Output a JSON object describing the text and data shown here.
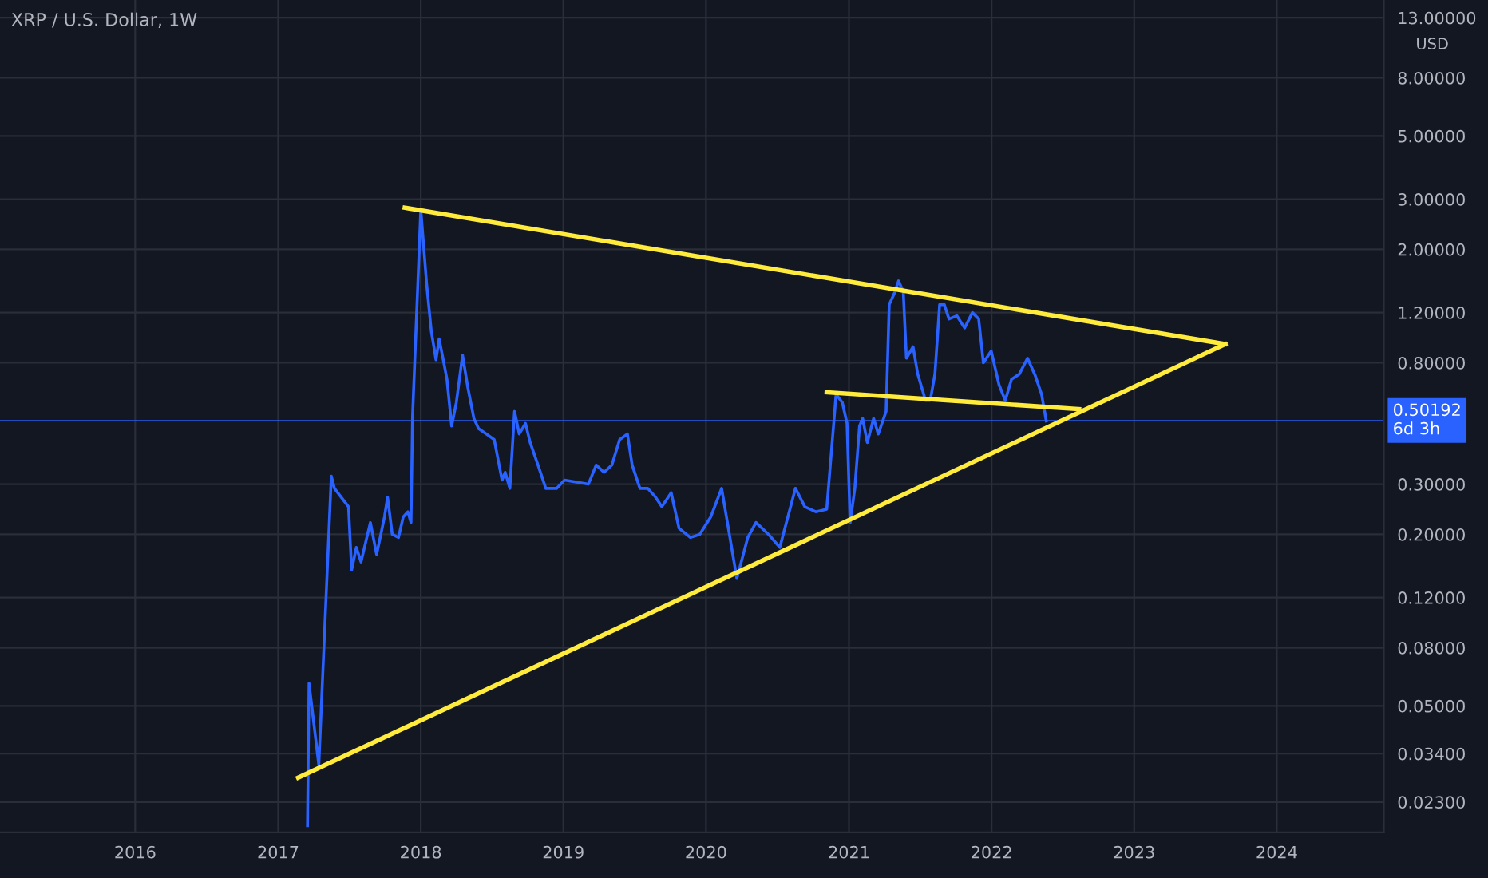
{
  "chart_data": {
    "type": "line",
    "title": "XRP / U.S. Dollar, 1W",
    "ylabel": "USD",
    "log": true,
    "grid": true,
    "legend": false,
    "marker": "none",
    "line_style": "solid",
    "xlim": [
      "2015-01-20",
      "2024-10-01"
    ],
    "xticks": [
      "2016",
      "2017",
      "2018",
      "2019",
      "2020",
      "2021",
      "2022",
      "2023",
      "2024"
    ],
    "ylim": [
      0.018,
      15
    ],
    "yticks": [
      {
        "value": 0.023,
        "label": "0.02300"
      },
      {
        "value": 0.034,
        "label": "0.03400"
      },
      {
        "value": 0.05,
        "label": "0.05000"
      },
      {
        "value": 0.08,
        "label": "0.08000"
      },
      {
        "value": 0.12,
        "label": "0.12000"
      },
      {
        "value": 0.2,
        "label": "0.20000"
      },
      {
        "value": 0.3,
        "label": "0.30000"
      },
      {
        "value": 0.8,
        "label": "0.80000"
      },
      {
        "value": 1.2,
        "label": "1.20000"
      },
      {
        "value": 2,
        "label": "2.00000"
      },
      {
        "value": 3,
        "label": "3.00000"
      },
      {
        "value": 5,
        "label": "5.00000"
      },
      {
        "value": 8,
        "label": "8.00000"
      },
      {
        "value": 13,
        "label": "13.00000"
      }
    ],
    "ref_lines": [
      {
        "axis": "y",
        "value": 0.50192,
        "label": "0.50192\n6d 3h",
        "color": "#2962ff",
        "line_style": "solid"
      }
    ],
    "series": [
      {
        "color": "#2962ff",
        "x": [
          "2017-03-17",
          "2017-03-21",
          "2017-04-15",
          "2017-05-17",
          "2017-05-25",
          "2017-06-30",
          "2017-07-08",
          "2017-07-20",
          "2017-08-01",
          "2017-08-25",
          "2017-09-10",
          "2017-09-30",
          "2017-10-08",
          "2017-10-20",
          "2017-11-05",
          "2017-11-17",
          "2017-11-29",
          "2017-12-07",
          "2017-12-11",
          "2018-01-01",
          "2018-01-16",
          "2018-01-28",
          "2018-02-09",
          "2018-02-17",
          "2018-03-01",
          "2018-03-09",
          "2018-03-21",
          "2018-04-02",
          "2018-04-18",
          "2018-05-01",
          "2018-05-17",
          "2018-05-29",
          "2018-06-18",
          "2018-07-08",
          "2018-07-28",
          "2018-08-05",
          "2018-08-17",
          "2018-08-29",
          "2018-09-10",
          "2018-09-26",
          "2018-10-08",
          "2018-10-28",
          "2018-11-17",
          "2018-12-15",
          "2019-01-04",
          "2019-03-06",
          "2019-03-26",
          "2019-04-15",
          "2019-05-05",
          "2019-05-25",
          "2019-06-14",
          "2019-06-26",
          "2019-07-16",
          "2019-08-05",
          "2019-08-25",
          "2019-09-10",
          "2019-10-04",
          "2019-10-24",
          "2019-11-22",
          "2019-12-16",
          "2020-01-13",
          "2020-02-10",
          "2020-03-20",
          "2020-04-17",
          "2020-05-08",
          "2020-06-09",
          "2020-07-08",
          "2020-08-17",
          "2020-09-10",
          "2020-10-08",
          "2020-11-05",
          "2020-11-29",
          "2020-12-15",
          "2020-12-27",
          "2021-01-04",
          "2021-01-16",
          "2021-01-28",
          "2021-02-05",
          "2021-02-17",
          "2021-03-05",
          "2021-03-17",
          "2021-04-06",
          "2021-04-14",
          "2021-04-26",
          "2021-05-08",
          "2021-05-20",
          "2021-05-28",
          "2021-06-14",
          "2021-06-26",
          "2021-07-16",
          "2021-07-28",
          "2021-08-09",
          "2021-08-21",
          "2021-09-02",
          "2021-09-14",
          "2021-10-04",
          "2021-10-24",
          "2021-11-13",
          "2021-11-29",
          "2021-12-11",
          "2021-12-31",
          "2022-01-20",
          "2022-02-05",
          "2022-02-21",
          "2022-03-13",
          "2022-04-03",
          "2022-04-23",
          "2022-05-09",
          "2022-05-21"
        ],
        "values": [
          0.019,
          0.06,
          0.031,
          0.32,
          0.29,
          0.25,
          0.15,
          0.18,
          0.16,
          0.22,
          0.17,
          0.23,
          0.27,
          0.2,
          0.195,
          0.23,
          0.24,
          0.22,
          0.52,
          2.76,
          1.51,
          1.03,
          0.82,
          0.97,
          0.8,
          0.7,
          0.48,
          0.58,
          0.85,
          0.66,
          0.51,
          0.47,
          0.45,
          0.43,
          0.31,
          0.33,
          0.29,
          0.54,
          0.45,
          0.49,
          0.42,
          0.35,
          0.29,
          0.29,
          0.31,
          0.3,
          0.35,
          0.33,
          0.35,
          0.43,
          0.45,
          0.35,
          0.29,
          0.29,
          0.27,
          0.25,
          0.28,
          0.21,
          0.195,
          0.2,
          0.23,
          0.29,
          0.14,
          0.195,
          0.22,
          0.2,
          0.18,
          0.29,
          0.25,
          0.24,
          0.245,
          0.62,
          0.58,
          0.49,
          0.22,
          0.29,
          0.48,
          0.51,
          0.42,
          0.51,
          0.45,
          0.54,
          1.28,
          1.39,
          1.55,
          1.42,
          0.83,
          0.91,
          0.73,
          0.59,
          0.59,
          0.73,
          1.28,
          1.28,
          1.14,
          1.17,
          1.06,
          1.2,
          1.14,
          0.8,
          0.88,
          0.67,
          0.59,
          0.7,
          0.73,
          0.83,
          0.72,
          0.62,
          0.5
        ]
      },
      {
        "color": "#ffeb3b",
        "x": [
          "2017-11-21",
          "2023-08-22"
        ],
        "values": [
          2.8,
          0.93
        ]
      },
      {
        "color": "#ffeb3b",
        "x": [
          "2017-02-21",
          "2023-08-22"
        ],
        "values": [
          0.028,
          0.93
        ]
      },
      {
        "color": "#ffeb3b",
        "x": [
          "2020-11-05",
          "2022-08-13"
        ],
        "values": [
          0.63,
          0.55
        ]
      }
    ]
  }
}
